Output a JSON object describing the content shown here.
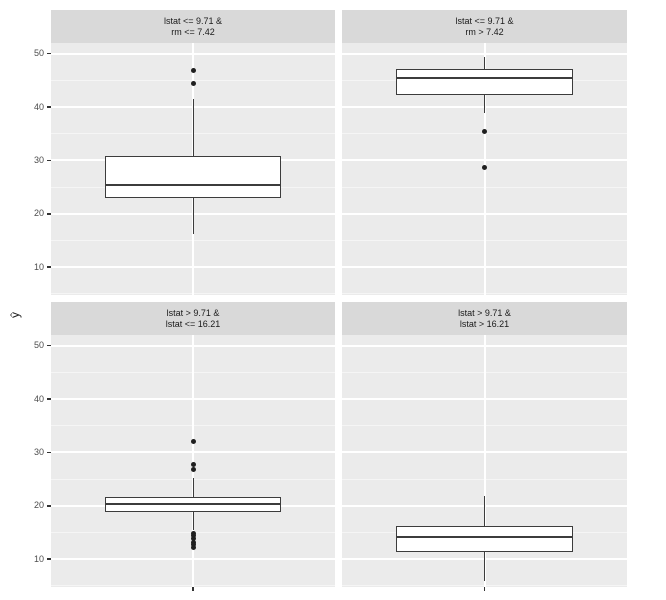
{
  "figure": {
    "colors": {
      "panel_bg": "#ebebeb",
      "strip_bg": "#d9d9d9",
      "strip_text": "#1a1a1a",
      "grid_major": "#ffffff",
      "grid_minor": "#f5f5f5",
      "box_border": "#3c3c3c",
      "box_fill": "#ffffff",
      "outlier": "#1f1f1f",
      "tick_label": "#4d4d4d"
    }
  },
  "chart_data": {
    "type": "boxplot",
    "facet_layout": {
      "rows": 2,
      "cols": 2
    },
    "title": "",
    "xlabel": "",
    "ylabel": "ŷ",
    "ylim": [
      4.8,
      52.0
    ],
    "y_ticks": [
      10,
      20,
      30,
      40,
      50
    ],
    "y_minor_ticks": [
      5,
      15,
      25,
      35,
      45
    ],
    "grid": "on",
    "panels": [
      {
        "row": 0,
        "col": 0,
        "label_lines": [
          "lstat <= 9.71 &",
          "rm <= 7.42"
        ],
        "box": {
          "whisker_low": 16.2,
          "q1": 22.9,
          "median": 25.4,
          "q3": 30.8,
          "whisker_high": 41.5
        },
        "outliers": [
          46.9,
          44.5
        ]
      },
      {
        "row": 0,
        "col": 1,
        "label_lines": [
          "lstat <= 9.71 &",
          "rm > 7.42"
        ],
        "box": {
          "whisker_low": 38.9,
          "q1": 42.2,
          "median": 45.5,
          "q3": 47.1,
          "whisker_high": 49.3
        },
        "outliers": [
          35.5,
          28.7
        ]
      },
      {
        "row": 1,
        "col": 0,
        "label_lines": [
          "lstat > 9.71 &",
          "lstat <= 16.21"
        ],
        "box": {
          "whisker_low": 15.5,
          "q1": 18.9,
          "median": 20.3,
          "q3": 21.7,
          "whisker_high": 25.3
        },
        "outliers": [
          32.0,
          27.8,
          26.9,
          14.9,
          14.4,
          13.8,
          13.2,
          12.7,
          12.2
        ]
      },
      {
        "row": 1,
        "col": 1,
        "label_lines": [
          "lstat > 9.71 &",
          "lstat > 16.21"
        ],
        "box": {
          "whisker_low": 6.0,
          "q1": 11.4,
          "median": 14.2,
          "q3": 16.2,
          "whisker_high": 21.8
        },
        "outliers": []
      }
    ]
  }
}
